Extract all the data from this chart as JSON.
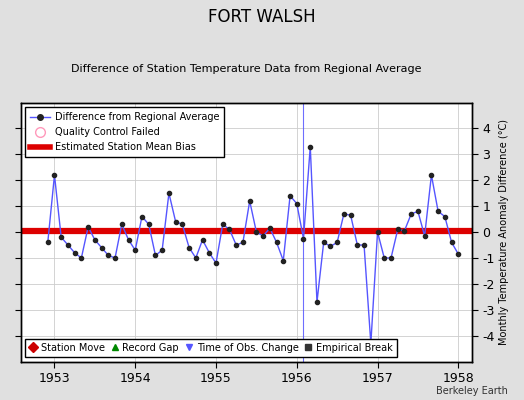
{
  "title": "FORT WALSH",
  "subtitle": "Difference of Station Temperature Data from Regional Average",
  "ylabel": "Monthly Temperature Anomaly Difference (°C)",
  "xlabel_years": [
    1953,
    1954,
    1955,
    1956,
    1957,
    1958
  ],
  "xlim": [
    1952.58,
    1958.17
  ],
  "ylim": [
    -5,
    5
  ],
  "yticks": [
    -4,
    -3,
    -2,
    -1,
    0,
    1,
    2,
    3,
    4
  ],
  "ytick_labels": [
    "-4",
    "-3",
    "-2",
    "-1",
    "0",
    "1",
    "2",
    "3",
    "4"
  ],
  "bias_value": 0.05,
  "fig_bg_color": "#e0e0e0",
  "plot_bg_color": "#ffffff",
  "line_color": "#5555ff",
  "bias_color": "#dd0000",
  "watermark": "Berkeley Earth",
  "data_x": [
    1952.917,
    1953.0,
    1953.083,
    1953.167,
    1953.25,
    1953.333,
    1953.417,
    1953.5,
    1953.583,
    1953.667,
    1953.75,
    1953.833,
    1953.917,
    1954.0,
    1954.083,
    1954.167,
    1954.25,
    1954.333,
    1954.417,
    1954.5,
    1954.583,
    1954.667,
    1954.75,
    1954.833,
    1954.917,
    1955.0,
    1955.083,
    1955.167,
    1955.25,
    1955.333,
    1955.417,
    1955.5,
    1955.583,
    1955.667,
    1955.75,
    1955.833,
    1955.917,
    1956.0,
    1956.083,
    1956.167,
    1956.25,
    1956.333,
    1956.417,
    1956.5,
    1956.583,
    1956.667,
    1956.75,
    1956.833,
    1956.917,
    1957.0,
    1957.083,
    1957.167,
    1957.25,
    1957.333,
    1957.417,
    1957.5,
    1957.583,
    1957.667,
    1957.75,
    1957.833,
    1957.917,
    1958.0
  ],
  "data_y": [
    -0.4,
    2.2,
    -0.2,
    -0.5,
    -0.8,
    -1.0,
    0.2,
    -0.3,
    -0.6,
    -0.9,
    -1.0,
    0.3,
    -0.3,
    -0.7,
    0.6,
    0.3,
    -0.9,
    -0.7,
    1.5,
    0.4,
    0.3,
    -0.6,
    -1.0,
    -0.3,
    -0.8,
    -1.2,
    0.3,
    0.1,
    -0.5,
    -0.4,
    1.2,
    0.0,
    -0.15,
    0.15,
    -0.4,
    -1.1,
    1.4,
    1.1,
    -0.25,
    3.3,
    -2.7,
    -0.4,
    -0.55,
    -0.4,
    0.7,
    0.65,
    -0.5,
    -0.5,
    -4.3,
    0.0,
    -1.0,
    -1.0,
    0.1,
    0.05,
    0.7,
    0.8,
    -0.15,
    2.2,
    0.8,
    0.6,
    -0.4,
    -0.85
  ],
  "obs_change_x": 1956.083,
  "title_fontsize": 12,
  "subtitle_fontsize": 8,
  "tick_fontsize": 9,
  "ylabel_fontsize": 7,
  "legend_fontsize": 7,
  "watermark_fontsize": 7
}
